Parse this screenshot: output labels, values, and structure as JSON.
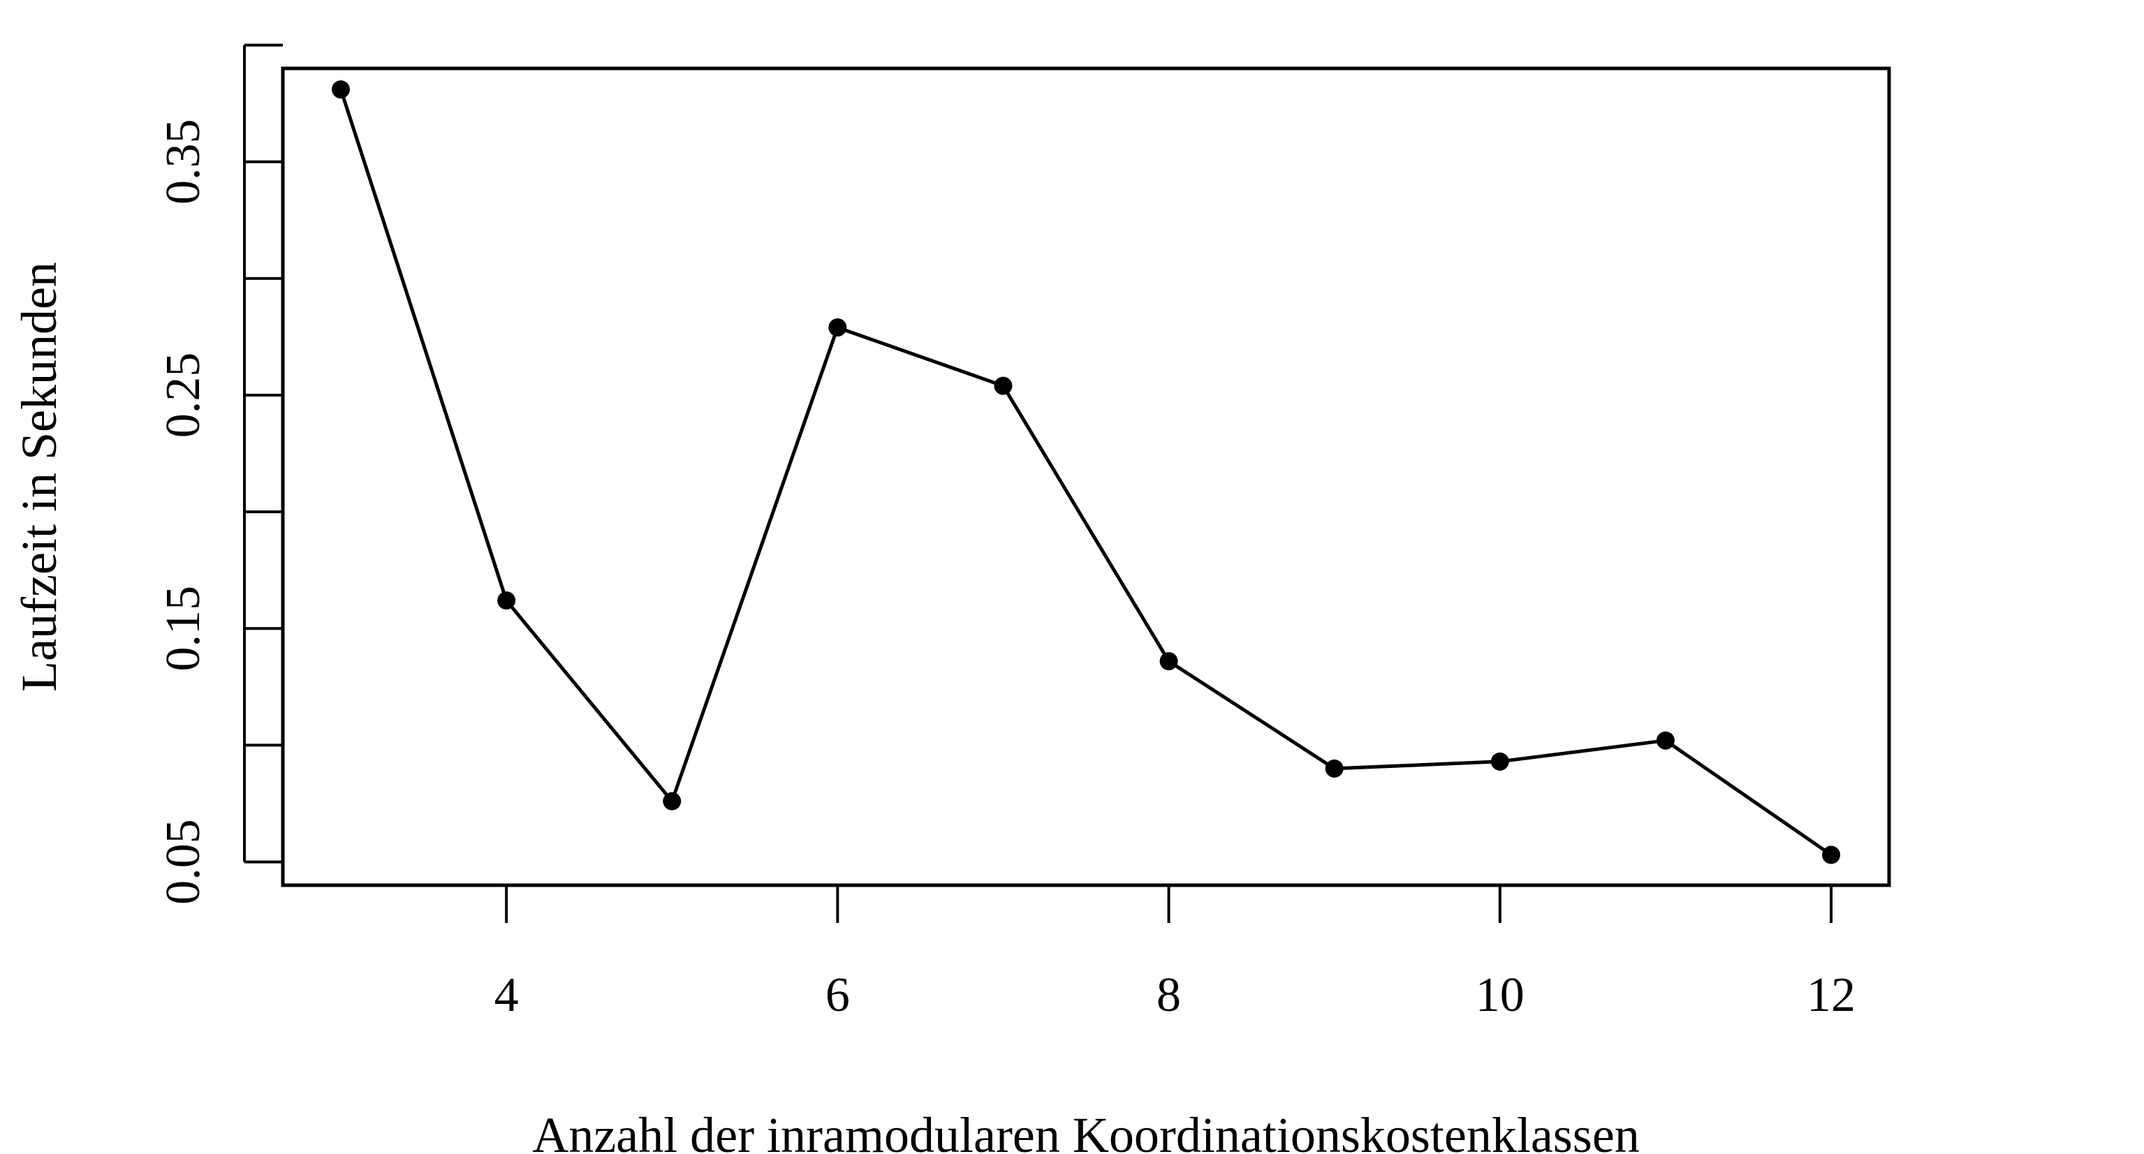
{
  "chart_data": {
    "type": "line",
    "xlabel": "Anzahl der inramodularen Koordinationskostenklassen",
    "ylabel": "Laufzeit in Sekunden",
    "x": [
      3,
      4,
      5,
      6,
      7,
      8,
      9,
      10,
      11,
      12
    ],
    "series": [
      {
        "values": [
          0.381,
          0.162,
          0.076,
          0.279,
          0.254,
          0.136,
          0.09,
          0.093,
          0.102,
          0.053
        ]
      }
    ],
    "xlim": [
      2.65,
      12.35
    ],
    "ylim": [
      0.04,
      0.39
    ],
    "xticks": [
      4,
      6,
      8,
      10,
      12
    ],
    "xtick_labels": [
      "4",
      "6",
      "8",
      "10",
      "12"
    ],
    "yticks": [
      0.05,
      0.1,
      0.15,
      0.2,
      0.25,
      0.3,
      0.35,
      0.4
    ],
    "ytick_labels": [
      "0.05",
      "",
      "0.15",
      "",
      "0.25",
      "",
      "0.35",
      ""
    ],
    "grid": false,
    "legend": "none",
    "colors": {
      "line": "#000000",
      "marker": "#000000",
      "frame": "#000000"
    }
  }
}
